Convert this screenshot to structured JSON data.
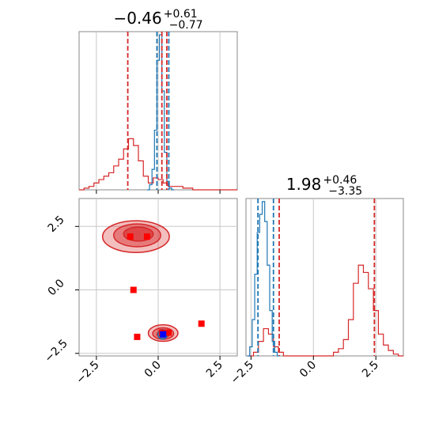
{
  "chart_data": [
    {
      "type": "histogram",
      "panel": "top-left",
      "title": {
        "main": "−0.46",
        "sup": "+0.61",
        "sub": "−0.77"
      },
      "xlim": [
        -3.2,
        3.2
      ],
      "grid": true,
      "series": [
        {
          "color": "#d62728",
          "x": [
            -3.1,
            -2.9,
            -2.7,
            -2.5,
            -2.3,
            -2.1,
            -1.9,
            -1.7,
            -1.5,
            -1.3,
            -1.1,
            -0.9,
            -0.7,
            -0.5,
            -0.3,
            -0.1,
            0.1,
            0.3,
            0.5,
            0.7,
            0.9,
            1.1,
            1.3,
            1.5,
            1.7,
            1.9,
            2.1,
            2.3,
            2.5,
            2.7,
            2.9,
            3.1
          ],
          "values": [
            0.0,
            0.01,
            0.02,
            0.04,
            0.06,
            0.08,
            0.1,
            0.14,
            0.18,
            0.24,
            0.3,
            0.26,
            0.17,
            0.08,
            0.04,
            0.07,
            0.06,
            0.04,
            0.02,
            0.02,
            0.02,
            0.01,
            0.01,
            0.0,
            0.0,
            0.0,
            0.0,
            0.0,
            0.0,
            0.0,
            0.0,
            0.0
          ]
        },
        {
          "color": "#1f77b4",
          "x": [
            -0.4,
            -0.3,
            -0.2,
            -0.1,
            0.0,
            0.1,
            0.2,
            0.3,
            0.4,
            0.5,
            0.6
          ],
          "values": [
            0.0,
            0.03,
            0.12,
            0.35,
            0.76,
            0.91,
            0.58,
            0.22,
            0.05,
            0.01,
            0.0
          ]
        }
      ],
      "vlines": [
        {
          "x": -1.23,
          "color": "#d62728"
        },
        {
          "x": 0.15,
          "color": "#d62728"
        },
        {
          "x": 0.35,
          "color": "#d62728"
        },
        {
          "x": -0.05,
          "color": "#1f77b4"
        },
        {
          "x": 0.43,
          "color": "#1f77b4"
        }
      ]
    },
    {
      "type": "histogram",
      "panel": "bottom-right",
      "title": {
        "main": "1.98",
        "sup": "+0.46",
        "sub": "−3.35"
      },
      "xlim": [
        -2.7,
        3.6
      ],
      "xticks": [
        -2.5,
        0.0,
        2.5
      ],
      "xticklabels": [
        "−2.5",
        "0.0",
        "2.5"
      ],
      "grid": true,
      "series": [
        {
          "color": "#d62728",
          "x": [
            -2.5,
            -2.3,
            -2.1,
            -1.9,
            -1.7,
            -1.5,
            -1.3,
            -1.1,
            -0.9,
            -0.7,
            -0.5,
            -0.3,
            -0.1,
            0.1,
            0.3,
            0.5,
            0.7,
            0.9,
            1.1,
            1.3,
            1.5,
            1.7,
            1.9,
            2.1,
            2.3,
            2.5,
            2.7,
            2.9,
            3.1,
            3.3,
            3.5
          ],
          "values": [
            0.0,
            0.02,
            0.08,
            0.15,
            0.12,
            0.05,
            0.02,
            0.0,
            0.0,
            0.0,
            0.0,
            0.0,
            0.0,
            0.0,
            0.0,
            0.0,
            0.0,
            0.02,
            0.04,
            0.09,
            0.2,
            0.4,
            0.5,
            0.46,
            0.37,
            0.25,
            0.12,
            0.06,
            0.03,
            0.01,
            0.0
          ]
        },
        {
          "color": "#1f77b4",
          "x": [
            -2.6,
            -2.5,
            -2.4,
            -2.3,
            -2.2,
            -2.1,
            -2.0,
            -1.9,
            -1.8,
            -1.7,
            -1.6,
            -1.5,
            -1.4
          ],
          "values": [
            0.0,
            0.05,
            0.2,
            0.45,
            0.68,
            0.78,
            0.85,
            0.74,
            0.5,
            0.25,
            0.08,
            0.02,
            0.0
          ]
        }
      ],
      "vlines": [
        {
          "x": -1.37,
          "color": "#d62728"
        },
        {
          "x": 2.44,
          "color": "#d62728"
        },
        {
          "x": -2.22,
          "color": "#1f77b4"
        },
        {
          "x": -1.6,
          "color": "#1f77b4"
        }
      ]
    },
    {
      "type": "contour-scatter",
      "panel": "bottom-left",
      "xlim": [
        -3.2,
        3.2
      ],
      "ylim": [
        -2.6,
        3.6
      ],
      "xticks": [
        -2.5,
        0.0,
        2.5
      ],
      "xticklabels": [
        "−2.5",
        "0.0",
        "2.5"
      ],
      "yticks": [
        -2.5,
        0.0,
        2.5
      ],
      "yticklabels": [
        "−2.5",
        "0.0",
        "2.5"
      ],
      "grid": true,
      "regions": [
        {
          "color": "#d62728",
          "cx": -0.9,
          "cy": 2.1,
          "rx": 2.7,
          "ry": 1.25,
          "alpha": 0.3
        },
        {
          "color": "#d62728",
          "cx": -0.85,
          "cy": 2.15,
          "rx": 1.9,
          "ry": 0.9,
          "alpha": 0.45
        },
        {
          "color": "#d62728",
          "cx": -0.8,
          "cy": 2.2,
          "rx": 1.2,
          "ry": 0.55,
          "alpha": 0.6
        },
        {
          "color": "#d62728",
          "cx": 0.2,
          "cy": -1.7,
          "rx": 1.2,
          "ry": 0.65,
          "alpha": 0.3
        },
        {
          "color": "#d62728",
          "cx": 0.2,
          "cy": -1.72,
          "rx": 0.85,
          "ry": 0.45,
          "alpha": 0.45
        },
        {
          "color": "#d62728",
          "cx": 0.2,
          "cy": -1.75,
          "rx": 0.5,
          "ry": 0.27,
          "alpha": 0.6
        },
        {
          "color": "#1f77b4",
          "cx": 0.18,
          "cy": -1.75,
          "rx": 0.38,
          "ry": 0.38,
          "alpha": 0.3
        },
        {
          "color": "#1f77b4",
          "cx": 0.18,
          "cy": -1.75,
          "rx": 0.25,
          "ry": 0.25,
          "alpha": 0.45
        },
        {
          "color": "#1f77b4",
          "cx": 0.18,
          "cy": -1.75,
          "rx": 0.13,
          "ry": 0.13,
          "alpha": 0.6
        }
      ],
      "points": [
        {
          "x": -1.13,
          "y": 2.1,
          "color": "#ff0000"
        },
        {
          "x": -0.45,
          "y": 2.1,
          "color": "#ff0000"
        },
        {
          "x": -1.0,
          "y": 0.0,
          "color": "#ff0000"
        },
        {
          "x": -0.85,
          "y": -1.85,
          "color": "#ff0000"
        },
        {
          "x": 1.75,
          "y": -1.33,
          "color": "#ff0000"
        },
        {
          "x": 0.15,
          "y": -1.68,
          "color": "#ff0000"
        },
        {
          "x": 0.42,
          "y": -1.68,
          "color": "#ff0000"
        },
        {
          "x": 0.2,
          "y": -1.75,
          "color": "#0000ff"
        }
      ]
    }
  ]
}
